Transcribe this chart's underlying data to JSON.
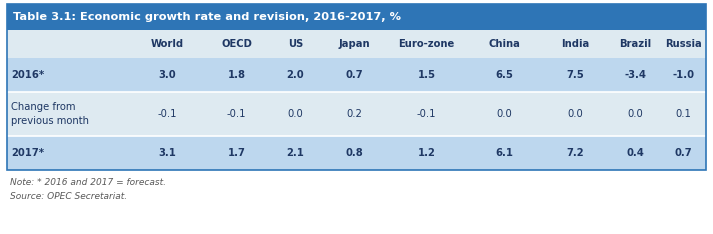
{
  "title": "Table 3.1: Economic growth rate and revision, 2016-2017, %",
  "title_bg": "#2E75B6",
  "title_color": "#FFFFFF",
  "header_cols": [
    "",
    "World",
    "OECD",
    "US",
    "Japan",
    "Euro-zone",
    "China",
    "India",
    "Brazil",
    "Russia"
  ],
  "rows": [
    {
      "label": "2016*",
      "values": [
        "3.0",
        "1.8",
        "2.0",
        "0.7",
        "1.5",
        "6.5",
        "7.5",
        "-3.4",
        "-1.0"
      ],
      "bold": true,
      "bg": "#BDD7EE"
    },
    {
      "label": "Change from\nprevious month",
      "values": [
        "-0.1",
        "-0.1",
        "0.0",
        "0.2",
        "-0.1",
        "0.0",
        "0.0",
        "0.0",
        "0.1"
      ],
      "bold": false,
      "bg": "#DEEAF1"
    },
    {
      "label": "2017*",
      "values": [
        "3.1",
        "1.7",
        "2.1",
        "0.8",
        "1.2",
        "6.1",
        "7.2",
        "0.4",
        "0.7"
      ],
      "bold": true,
      "bg": "#BDD7EE"
    }
  ],
  "note": "Note: * 2016 and 2017 = forecast.",
  "source": "Source: OPEC Secretariat.",
  "header_bg": "#DEEAF1",
  "table_border": "#2E75B6",
  "text_color": "#1F3864",
  "note_color": "#595959",
  "fig_w": 7.13,
  "fig_h": 2.34,
  "dpi": 100
}
